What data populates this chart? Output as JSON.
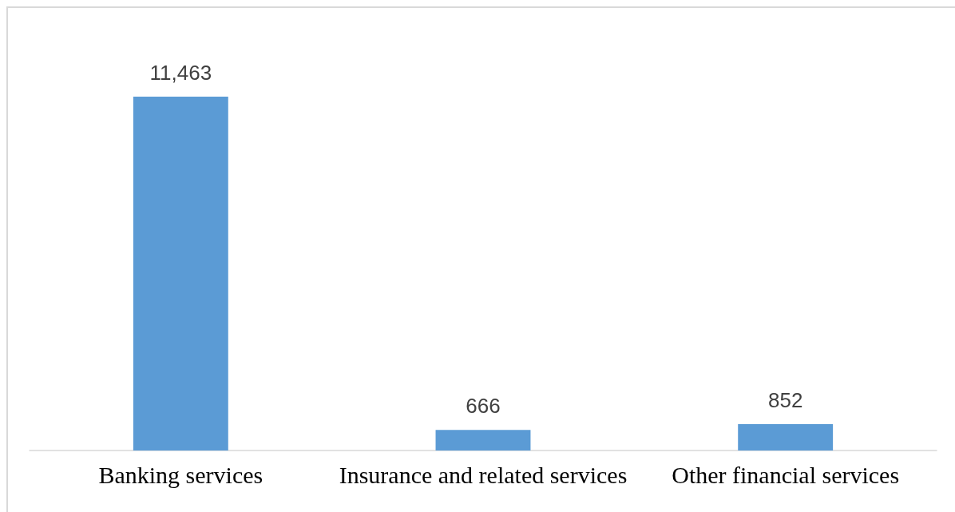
{
  "chart_data": {
    "type": "bar",
    "categories": [
      "Banking services",
      "Insurance and related services",
      "Other financial services"
    ],
    "values": [
      11463,
      666,
      852
    ],
    "color": "#5b9bd5",
    "value_labels": [
      "11,463",
      "666",
      "852"
    ]
  }
}
